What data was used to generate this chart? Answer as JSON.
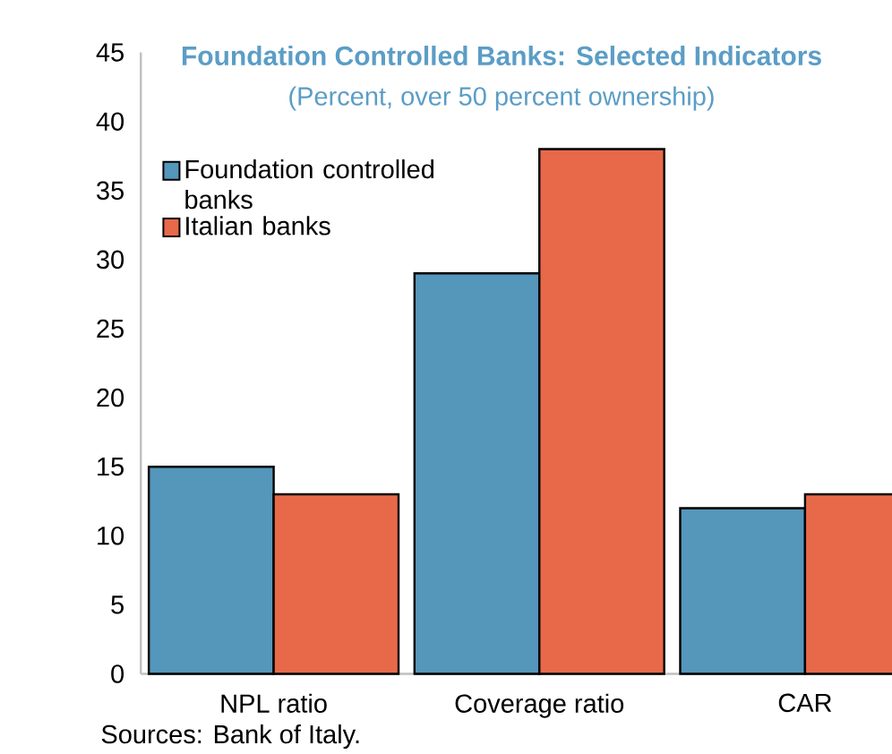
{
  "chart_data": {
    "type": "bar",
    "title": "Foundation Controlled Banks: Selected Indicators",
    "subtitle": "(Percent, over 50 percent ownership)",
    "categories": [
      "NPL ratio",
      "Coverage ratio",
      "CAR"
    ],
    "series": [
      {
        "name": "Foundation controlled banks",
        "color": "#5596bb",
        "values": [
          15,
          29,
          12
        ]
      },
      {
        "name": "Italian banks",
        "color": "#e8694a",
        "values": [
          13,
          38,
          13
        ]
      }
    ],
    "ylim": [
      0,
      45
    ],
    "yticks": [
      0,
      5,
      10,
      15,
      20,
      25,
      30,
      35,
      40,
      45
    ],
    "legend": "top left",
    "annotations": [
      "Sources: Bank of Italy."
    ]
  }
}
